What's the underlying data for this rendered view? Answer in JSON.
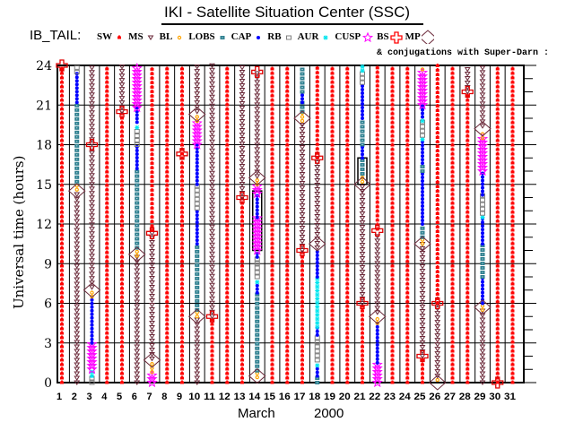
{
  "header": {
    "title": "IKI - Satellite Situation Center (SSC)",
    "mission_label": "IB_TAIL:",
    "conjugation_note": "& conjugations with Super-Darn :"
  },
  "legend": [
    {
      "key": "SW",
      "label": "SW",
      "color": "#ff0000",
      "symbol": "sw"
    },
    {
      "key": "MS",
      "label": "MS",
      "color": "#6b2a3a",
      "symbol": "triangle"
    },
    {
      "key": "BL",
      "label": "BL",
      "color": "#ffa500",
      "symbol": "sun"
    },
    {
      "key": "LOBS",
      "label": "LOBS",
      "color": "#2f7f8f",
      "symbol": "square-filled"
    },
    {
      "key": "CAP",
      "label": "CAP",
      "color": "#0000ff",
      "symbol": "dot"
    },
    {
      "key": "RB",
      "label": "RB",
      "color": "#808080",
      "symbol": "square-open"
    },
    {
      "key": "AUR",
      "label": "AUR",
      "color": "#00e5ee",
      "symbol": "asterisk"
    },
    {
      "key": "CUSP",
      "label": "CUSP",
      "color": "#ff00ff",
      "symbol": "star"
    },
    {
      "key": "BS",
      "label": "BS",
      "color": "#ff0000",
      "symbol": "cross"
    },
    {
      "key": "MP",
      "label": "MP",
      "color": "#6b2a3a",
      "symbol": "diamond"
    }
  ],
  "chart_data": {
    "type": "timeline",
    "title": "IKI - Satellite Situation Center (SSC)",
    "xlabel_month": "March",
    "xlabel_year": "2000",
    "ylabel": "Universal time (hours)",
    "xlim": [
      1,
      31
    ],
    "ylim": [
      0,
      24
    ],
    "yticks": [
      0,
      3,
      6,
      9,
      12,
      15,
      18,
      21,
      24
    ],
    "xticks": [
      1,
      2,
      3,
      4,
      5,
      6,
      7,
      8,
      9,
      10,
      11,
      12,
      13,
      14,
      15,
      16,
      17,
      18,
      19,
      20,
      21,
      22,
      23,
      24,
      25,
      26,
      27,
      28,
      29,
      30,
      31
    ],
    "grid": true,
    "region_symbols": {
      "SW": {
        "color": "#ff0000",
        "glyph": "sw"
      },
      "MS": {
        "color": "#6b2a3a",
        "glyph": "triangle"
      },
      "LOBS": {
        "color": "#ffa500",
        "glyph": "sun"
      },
      "CAP": {
        "color": "#2f7f8f",
        "glyph": "square-filled"
      },
      "RB": {
        "color": "#0000ff",
        "glyph": "dot"
      },
      "AUR": {
        "color": "#808080",
        "glyph": "square-open"
      },
      "CUSP": {
        "color": "#00e5ee",
        "glyph": "asterisk"
      },
      "BS": {
        "color": "#ff00ff",
        "glyph": "star"
      }
    },
    "days": [
      {
        "day": 1,
        "segments": [
          [
            0,
            24,
            "SW"
          ]
        ],
        "mp": [
          24
        ],
        "diamonds": []
      },
      {
        "day": 2,
        "segments": [
          [
            0,
            14.5,
            "MS"
          ],
          [
            14.6,
            15.2,
            "LOBS"
          ],
          [
            15.2,
            21.2,
            "CAP"
          ],
          [
            21.2,
            23.5,
            "RB"
          ],
          [
            23.5,
            24,
            "AUR"
          ]
        ],
        "mp": [],
        "diamonds": [
          14.5
        ]
      },
      {
        "day": 3,
        "segments": [
          [
            0,
            0.4,
            "AUR"
          ],
          [
            0.5,
            0.9,
            "CUSP"
          ],
          [
            1,
            3,
            "BS"
          ],
          [
            3,
            6.5,
            "RB"
          ],
          [
            6.5,
            7,
            "LOBS"
          ],
          [
            7.2,
            24,
            "MS"
          ]
        ],
        "mp": [
          18
        ],
        "diamonds": [
          7
        ]
      },
      {
        "day": 4,
        "segments": [
          [
            0,
            24,
            "SW"
          ]
        ],
        "mp": [],
        "diamonds": []
      },
      {
        "day": 5,
        "segments": [
          [
            0,
            20.5,
            "SW"
          ],
          [
            20.5,
            24,
            "MS"
          ]
        ],
        "mp": [
          20.5
        ],
        "diamonds": []
      },
      {
        "day": 6,
        "segments": [
          [
            0,
            9.5,
            "MS"
          ],
          [
            9.6,
            10.2,
            "LOBS"
          ],
          [
            10.2,
            16.2,
            "CAP"
          ],
          [
            16.2,
            18,
            "RB"
          ],
          [
            18,
            19.2,
            "AUR"
          ],
          [
            19.3,
            19.6,
            "CUSP"
          ],
          [
            19.7,
            20.8,
            "RB"
          ],
          [
            20.8,
            24,
            "BS"
          ]
        ],
        "mp": [],
        "diamonds": [
          9.7
        ]
      },
      {
        "day": 7,
        "segments": [
          [
            0,
            0.8,
            "BS"
          ],
          [
            0.8,
            1.5,
            "LOBS"
          ],
          [
            1.8,
            11.3,
            "MS"
          ],
          [
            11.5,
            24,
            "SW"
          ]
        ],
        "mp": [
          11.3
        ],
        "diamonds": [
          1.7
        ]
      },
      {
        "day": 8,
        "segments": [
          [
            0,
            24,
            "SW"
          ]
        ],
        "mp": [],
        "diamonds": []
      },
      {
        "day": 9,
        "segments": [
          [
            0,
            24,
            "SW"
          ]
        ],
        "mp": [
          17.3
        ],
        "diamonds": []
      },
      {
        "day": 10,
        "segments": [
          [
            0,
            5,
            "MS"
          ],
          [
            5,
            5.5,
            "LOBS"
          ],
          [
            5.5,
            10.5,
            "CAP"
          ],
          [
            10.5,
            13.2,
            "RB"
          ],
          [
            13.2,
            15,
            "AUR"
          ],
          [
            15,
            18,
            "RB"
          ],
          [
            18,
            19.8,
            "BS"
          ],
          [
            19.8,
            20.3,
            "LOBS"
          ],
          [
            20.5,
            24,
            "MS"
          ]
        ],
        "mp": [],
        "diamonds": [
          5,
          20.3
        ]
      },
      {
        "day": 11,
        "segments": [
          [
            0,
            5,
            "SW"
          ],
          [
            5,
            24,
            "MS"
          ]
        ],
        "mp": [
          5
        ],
        "diamonds": []
      },
      {
        "day": 12,
        "segments": [
          [
            0,
            24,
            "SW"
          ]
        ],
        "mp": [],
        "diamonds": []
      },
      {
        "day": 13,
        "segments": [
          [
            0,
            14,
            "SW"
          ],
          [
            14,
            24,
            "MS"
          ]
        ],
        "mp": [
          14
        ],
        "diamonds": []
      },
      {
        "day": 14,
        "segments": [
          [
            0.4,
            0.8,
            "LOBS"
          ],
          [
            0.9,
            6.8,
            "CAP"
          ],
          [
            6.8,
            7.5,
            "RB"
          ],
          [
            7.6,
            7.9,
            "CUSP"
          ],
          [
            8,
            9.5,
            "AUR"
          ],
          [
            9.5,
            10,
            "RB"
          ],
          [
            10,
            12.5,
            "BS"
          ],
          [
            12.5,
            14.3,
            "RB"
          ],
          [
            14.3,
            15,
            "BS"
          ],
          [
            15,
            15.4,
            "LOBS"
          ],
          [
            15.6,
            23.5,
            "MS"
          ]
        ],
        "mp": [
          23.5
        ],
        "diamonds": [
          0.5,
          15.5
        ]
      },
      {
        "day": 15,
        "segments": [
          [
            0,
            24,
            "SW"
          ]
        ],
        "mp": [],
        "diamonds": []
      },
      {
        "day": 16,
        "segments": [
          [
            0,
            24,
            "SW"
          ]
        ],
        "mp": [],
        "diamonds": []
      },
      {
        "day": 17,
        "segments": [
          [
            0,
            10,
            "SW"
          ],
          [
            10,
            19.8,
            "MS"
          ],
          [
            19.8,
            20.5,
            "LOBS"
          ],
          [
            20.5,
            21.2,
            "CAP"
          ],
          [
            21.2,
            22,
            "RB"
          ],
          [
            22,
            24,
            "CAP"
          ]
        ],
        "mp": [
          10
        ],
        "diamonds": [
          20
        ]
      },
      {
        "day": 18,
        "segments": [
          [
            0,
            0.5,
            "CAP"
          ],
          [
            0.5,
            1.2,
            "RB"
          ],
          [
            1.3,
            1.6,
            "CUSP"
          ],
          [
            1.7,
            3.6,
            "AUR"
          ],
          [
            3.6,
            4.2,
            "RB"
          ],
          [
            4.2,
            8,
            "CUSP"
          ],
          [
            8,
            10,
            "RB"
          ],
          [
            10.2,
            17,
            "MS"
          ],
          [
            17,
            24,
            "SW"
          ]
        ],
        "mp": [
          17
        ],
        "diamonds": [
          10.5
        ]
      },
      {
        "day": 19,
        "segments": [
          [
            0,
            24,
            "SW"
          ]
        ],
        "mp": [],
        "diamonds": []
      },
      {
        "day": 20,
        "segments": [
          [
            0,
            24,
            "SW"
          ]
        ],
        "mp": [],
        "diamonds": []
      },
      {
        "day": 21,
        "segments": [
          [
            0,
            6,
            "SW"
          ],
          [
            6,
            15,
            "MS"
          ],
          [
            15.2,
            15.8,
            "LOBS"
          ],
          [
            15.8,
            17,
            "CAP"
          ],
          [
            17,
            18,
            "RB"
          ],
          [
            18,
            20,
            "CAP"
          ],
          [
            20,
            22.7,
            "RB"
          ],
          [
            22.7,
            23.6,
            "AUR"
          ],
          [
            23.6,
            24,
            "CUSP"
          ]
        ],
        "mp": [
          6
        ],
        "diamonds": [
          15
        ]
      },
      {
        "day": 22,
        "segments": [
          [
            0,
            1.5,
            "BS"
          ],
          [
            1.5,
            4.5,
            "RB"
          ],
          [
            4.5,
            5,
            "LOBS"
          ],
          [
            5.3,
            11.4,
            "MS"
          ],
          [
            11.6,
            24,
            "SW"
          ]
        ],
        "mp": [
          11.5
        ],
        "diamonds": [
          5
        ]
      },
      {
        "day": 23,
        "segments": [
          [
            0,
            24,
            "SW"
          ]
        ],
        "mp": [],
        "diamonds": []
      },
      {
        "day": 24,
        "segments": [
          [
            0,
            24,
            "SW"
          ]
        ],
        "mp": [],
        "diamonds": []
      },
      {
        "day": 25,
        "segments": [
          [
            0,
            2,
            "SW"
          ],
          [
            2,
            10.5,
            "MS"
          ],
          [
            10.5,
            11,
            "LOBS"
          ],
          [
            11,
            12,
            "CAP"
          ],
          [
            12,
            16,
            "RB"
          ],
          [
            16,
            16.6,
            "CAP"
          ],
          [
            16.6,
            18.4,
            "RB"
          ],
          [
            18.4,
            18.7,
            "CUSP"
          ],
          [
            18.7,
            19.8,
            "AUR"
          ],
          [
            19.8,
            20.1,
            "CUSP"
          ],
          [
            20.1,
            21,
            "RB"
          ],
          [
            21,
            23.7,
            "BS"
          ],
          [
            23.7,
            24,
            "LOBS"
          ]
        ],
        "mp": [
          2
        ],
        "diamonds": [
          10.5
        ]
      },
      {
        "day": 26,
        "segments": [
          [
            0.2,
            0.5,
            "LOBS"
          ],
          [
            0.5,
            6,
            "MS"
          ],
          [
            6,
            24,
            "SW"
          ]
        ],
        "mp": [
          6
        ],
        "diamonds": [
          0
        ]
      },
      {
        "day": 27,
        "segments": [
          [
            0,
            24,
            "SW"
          ]
        ],
        "mp": [],
        "diamonds": []
      },
      {
        "day": 28,
        "segments": [
          [
            0,
            22,
            "SW"
          ],
          [
            22,
            24,
            "MS"
          ]
        ],
        "mp": [
          22
        ],
        "diamonds": []
      },
      {
        "day": 29,
        "segments": [
          [
            0,
            5.5,
            "MS"
          ],
          [
            5.5,
            6,
            "LOBS"
          ],
          [
            6,
            8,
            "RB"
          ],
          [
            8,
            10.5,
            "CAP"
          ],
          [
            10.5,
            12.5,
            "RB"
          ],
          [
            12.5,
            12.8,
            "CUSP"
          ],
          [
            12.8,
            14.2,
            "AUR"
          ],
          [
            14.2,
            16,
            "RB"
          ],
          [
            16,
            18.5,
            "BS"
          ],
          [
            18.5,
            19,
            "LOBS"
          ],
          [
            19.4,
            24,
            "MS"
          ]
        ],
        "mp": [],
        "diamonds": [
          5.7,
          19.2
        ]
      },
      {
        "day": 30,
        "segments": [
          [
            0,
            24,
            "SW"
          ]
        ],
        "mp": [
          0
        ],
        "diamonds": []
      },
      {
        "day": 31,
        "segments": [
          [
            0,
            24,
            "SW"
          ]
        ],
        "mp": [],
        "diamonds": []
      }
    ],
    "conjugation_boxes": [
      {
        "day": 14,
        "from": 10,
        "to": 14.5
      },
      {
        "day": 21,
        "from": 15,
        "to": 17
      }
    ]
  }
}
